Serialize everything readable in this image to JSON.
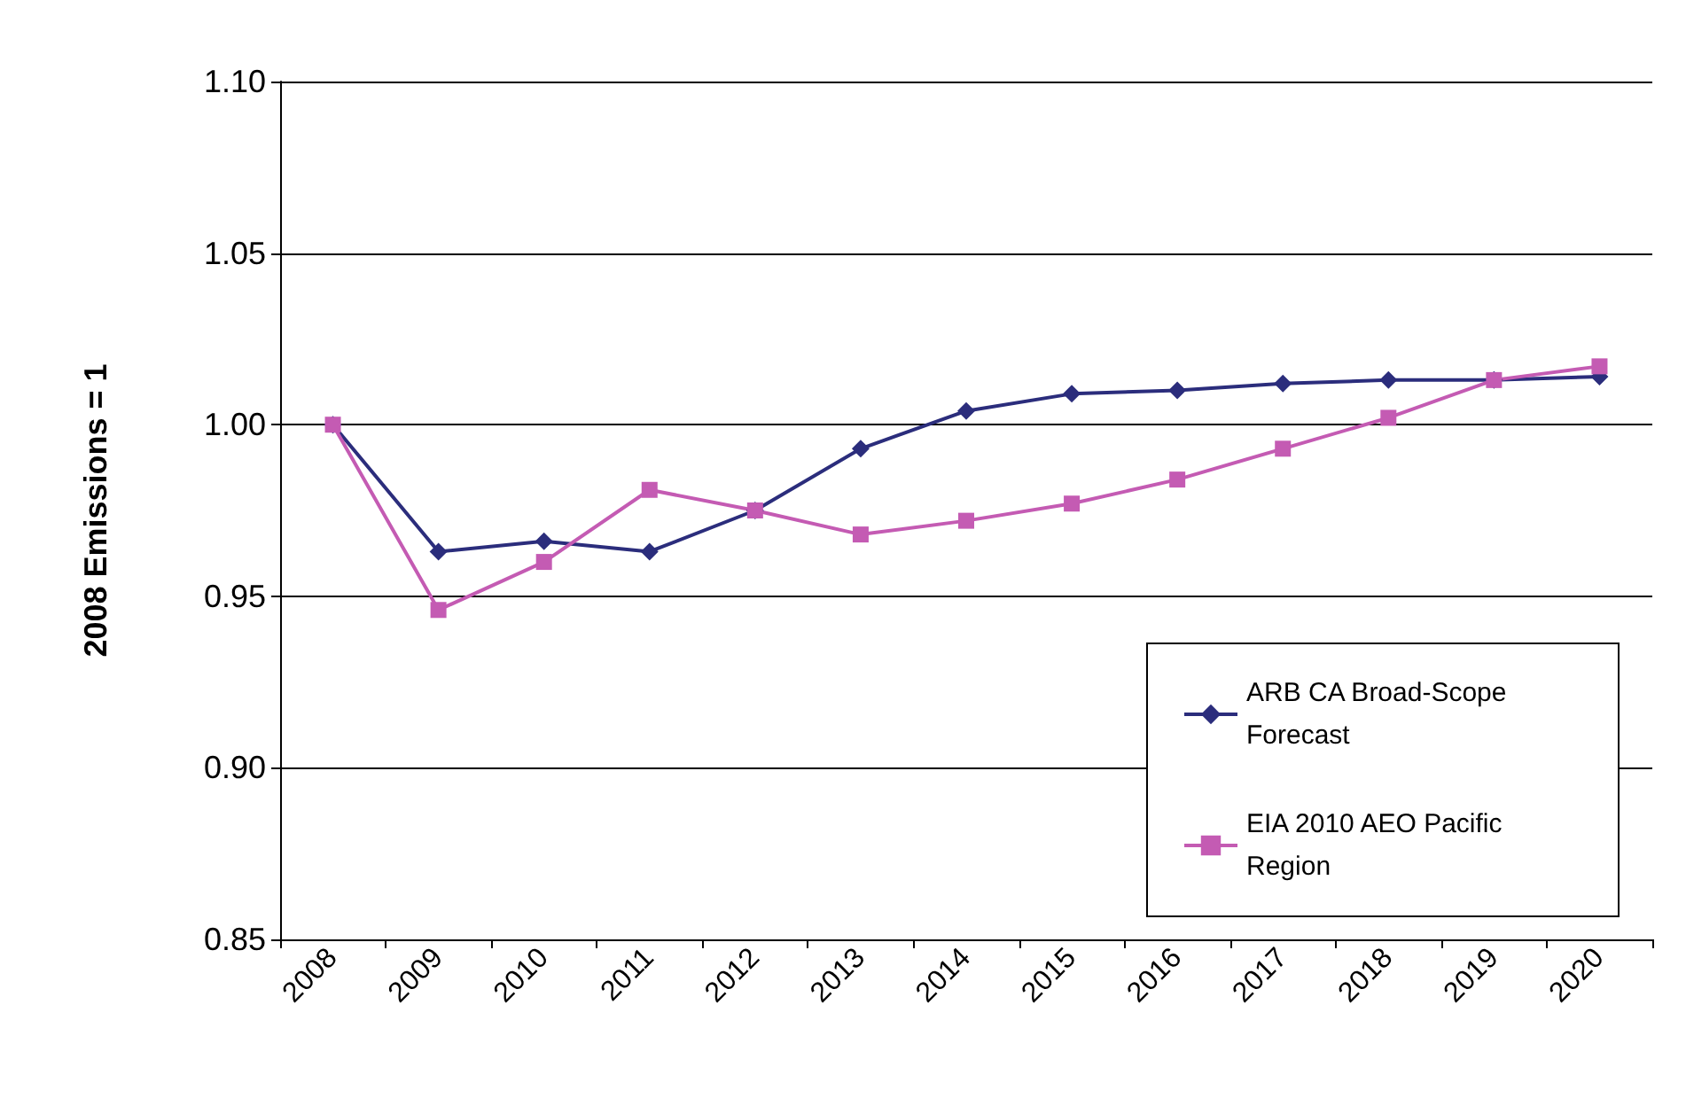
{
  "chart_data": {
    "type": "line",
    "ylabel": "2008 Emissions = 1",
    "categories": [
      "2008",
      "2009",
      "2010",
      "2011",
      "2012",
      "2013",
      "2014",
      "2015",
      "2016",
      "2017",
      "2018",
      "2019",
      "2020"
    ],
    "series": [
      {
        "name": "ARB CA Broad-Scope Forecast",
        "color": "#2b2d7c",
        "marker": "diamond",
        "values": [
          1.0,
          0.963,
          0.966,
          0.963,
          0.975,
          0.993,
          1.004,
          1.009,
          1.01,
          1.012,
          1.013,
          1.013,
          1.014
        ]
      },
      {
        "name": "EIA 2010 AEO Pacific Region",
        "color": "#c45bb3",
        "marker": "square",
        "values": [
          1.0,
          0.946,
          0.96,
          0.981,
          0.975,
          0.968,
          0.972,
          0.977,
          0.984,
          0.993,
          1.002,
          1.013,
          1.017
        ]
      }
    ],
    "ylim": [
      0.85,
      1.1
    ],
    "yticks": [
      {
        "value": 0.85,
        "label": "0.85"
      },
      {
        "value": 0.9,
        "label": "0.90"
      },
      {
        "value": 0.95,
        "label": "0.95"
      },
      {
        "value": 1.0,
        "label": "1.00"
      },
      {
        "value": 1.05,
        "label": "1.05"
      },
      {
        "value": 1.1,
        "label": "1.10"
      }
    ],
    "grid": "y",
    "legend": "right"
  }
}
